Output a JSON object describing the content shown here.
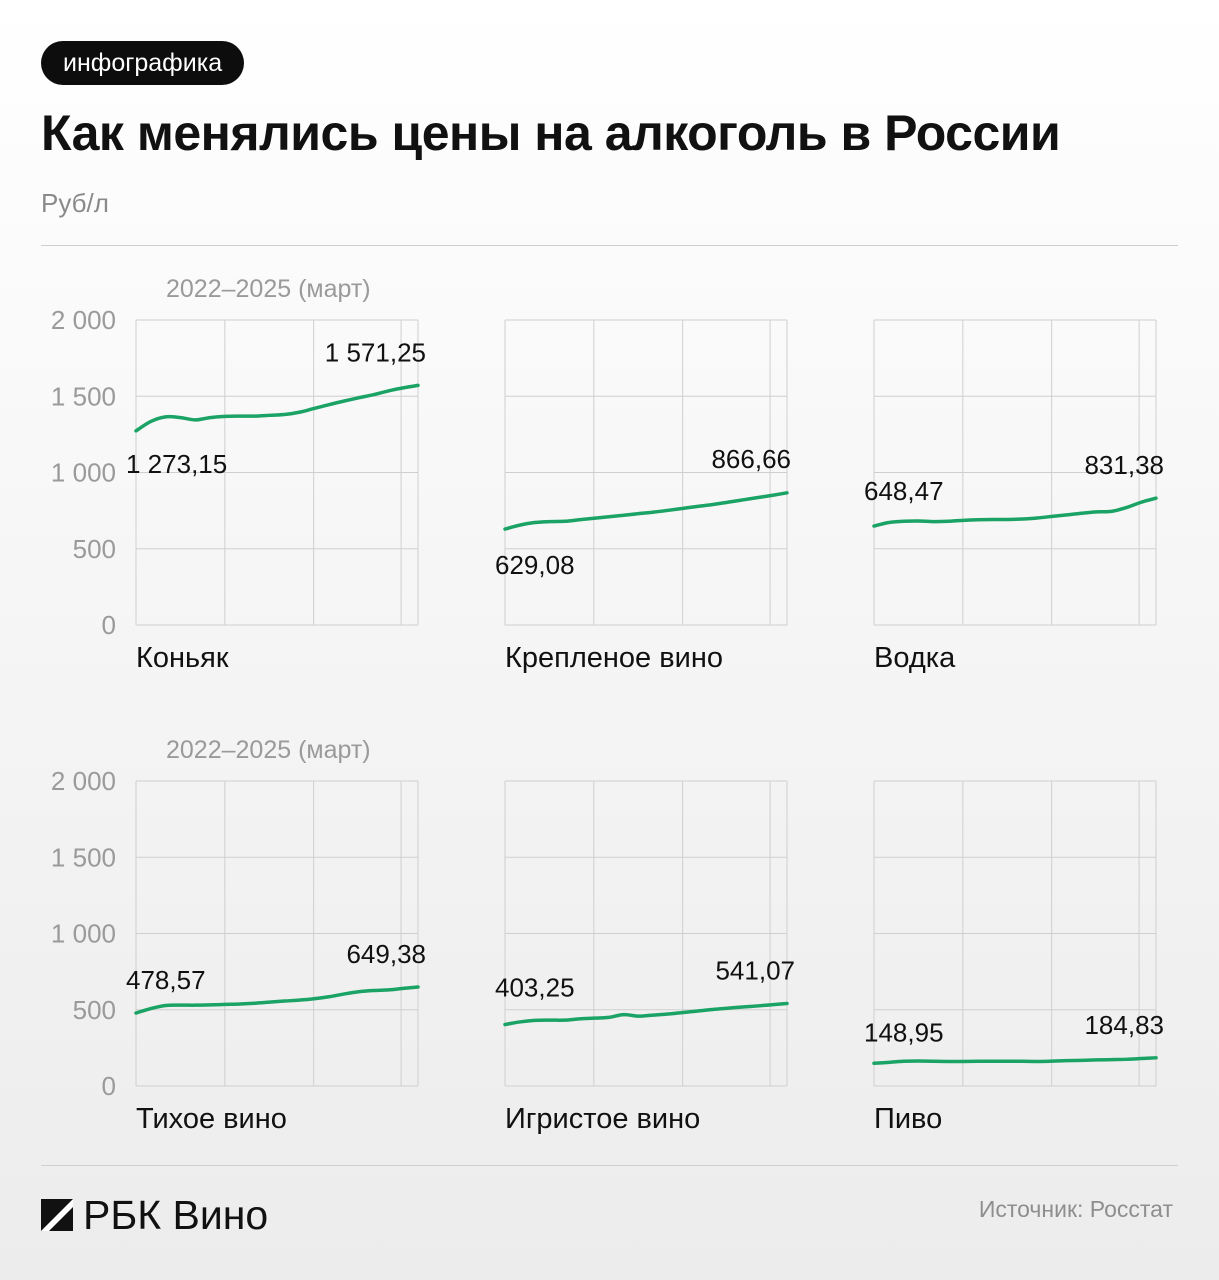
{
  "header": {
    "badge": "инфографика",
    "title": "Как менялись цены на алкоголь в России",
    "unit": "Руб/л"
  },
  "footer": {
    "logo_text": "РБК Вино",
    "source": "Источник: Росстат"
  },
  "colors": {
    "line": "#1aa364",
    "grid": "#cfcfcf",
    "axis_text": "#9a9a9a",
    "text": "#111111"
  },
  "chart_data": [
    {
      "type": "line",
      "title": "Коньяк",
      "period_label": "2022–2025 (март)",
      "y_ticks": [
        "2 000",
        "1 500",
        "1 000",
        "500",
        "0"
      ],
      "ylim": [
        0,
        2000
      ],
      "x": [
        0,
        2,
        4,
        6,
        8,
        10,
        12,
        14,
        16,
        18,
        20,
        22,
        24,
        26,
        28,
        30,
        32,
        34,
        36,
        38
      ],
      "values": [
        1273.15,
        1335,
        1365,
        1360,
        1345,
        1360,
        1368,
        1370,
        1370,
        1375,
        1380,
        1395,
        1420,
        1445,
        1468,
        1490,
        1510,
        1535,
        1555,
        1571.25
      ],
      "start_label": "1 273,15",
      "end_label": "1 571,25",
      "grid": true
    },
    {
      "type": "line",
      "title": "Крепленое вино",
      "period_label": "",
      "y_ticks": [],
      "ylim": [
        0,
        2000
      ],
      "x": [
        0,
        2,
        4,
        6,
        8,
        10,
        12,
        14,
        16,
        18,
        20,
        22,
        24,
        26,
        28,
        30,
        32,
        34,
        36,
        38
      ],
      "values": [
        629.08,
        655,
        672,
        678,
        680,
        690,
        700,
        710,
        720,
        730,
        740,
        752,
        765,
        778,
        790,
        805,
        820,
        835,
        850,
        866.66
      ],
      "start_label": "629,08",
      "end_label": "866,66",
      "grid": true
    },
    {
      "type": "line",
      "title": "Водка",
      "period_label": "",
      "y_ticks": [],
      "ylim": [
        0,
        2000
      ],
      "x": [
        0,
        2,
        4,
        6,
        8,
        10,
        12,
        14,
        16,
        18,
        20,
        22,
        24,
        26,
        28,
        30,
        32,
        34,
        36,
        38
      ],
      "values": [
        648.47,
        672,
        680,
        682,
        678,
        680,
        686,
        690,
        692,
        692,
        695,
        702,
        712,
        722,
        733,
        742,
        745,
        770,
        805,
        831.38
      ],
      "start_label": "648,47",
      "end_label": "831,38",
      "grid": true
    },
    {
      "type": "line",
      "title": "Тихое вино",
      "period_label": "2022–2025 (март)",
      "y_ticks": [
        "2 000",
        "1 500",
        "1 000",
        "500",
        "0"
      ],
      "ylim": [
        0,
        2000
      ],
      "x": [
        0,
        2,
        4,
        6,
        8,
        10,
        12,
        14,
        16,
        18,
        20,
        22,
        24,
        26,
        28,
        30,
        32,
        34,
        36,
        38
      ],
      "values": [
        478.57,
        508,
        528,
        530,
        530,
        532,
        535,
        538,
        543,
        550,
        557,
        563,
        572,
        585,
        603,
        618,
        626,
        630,
        640,
        649.38
      ],
      "start_label": "478,57",
      "end_label": "649,38",
      "grid": true
    },
    {
      "type": "line",
      "title": "Игристое вино",
      "period_label": "",
      "y_ticks": [],
      "ylim": [
        0,
        2000
      ],
      "x": [
        0,
        2,
        4,
        6,
        8,
        10,
        12,
        14,
        16,
        18,
        20,
        22,
        24,
        26,
        28,
        30,
        32,
        34,
        36,
        38
      ],
      "values": [
        403.25,
        420,
        430,
        432,
        432,
        440,
        445,
        450,
        468,
        458,
        465,
        472,
        482,
        492,
        502,
        510,
        518,
        525,
        533,
        541.07
      ],
      "start_label": "403,25",
      "end_label": "541,07",
      "grid": true
    },
    {
      "type": "line",
      "title": "Пиво",
      "period_label": "",
      "y_ticks": [],
      "ylim": [
        0,
        2000
      ],
      "x": [
        0,
        2,
        4,
        6,
        8,
        10,
        12,
        14,
        16,
        18,
        20,
        22,
        24,
        26,
        28,
        30,
        32,
        34,
        36,
        38
      ],
      "values": [
        148.95,
        155,
        162,
        164,
        162,
        161,
        161,
        162,
        162,
        162,
        162,
        161,
        163,
        166,
        168,
        171,
        173,
        175,
        180,
        184.83
      ],
      "start_label": "148,95",
      "end_label": "184,83",
      "grid": true
    }
  ]
}
